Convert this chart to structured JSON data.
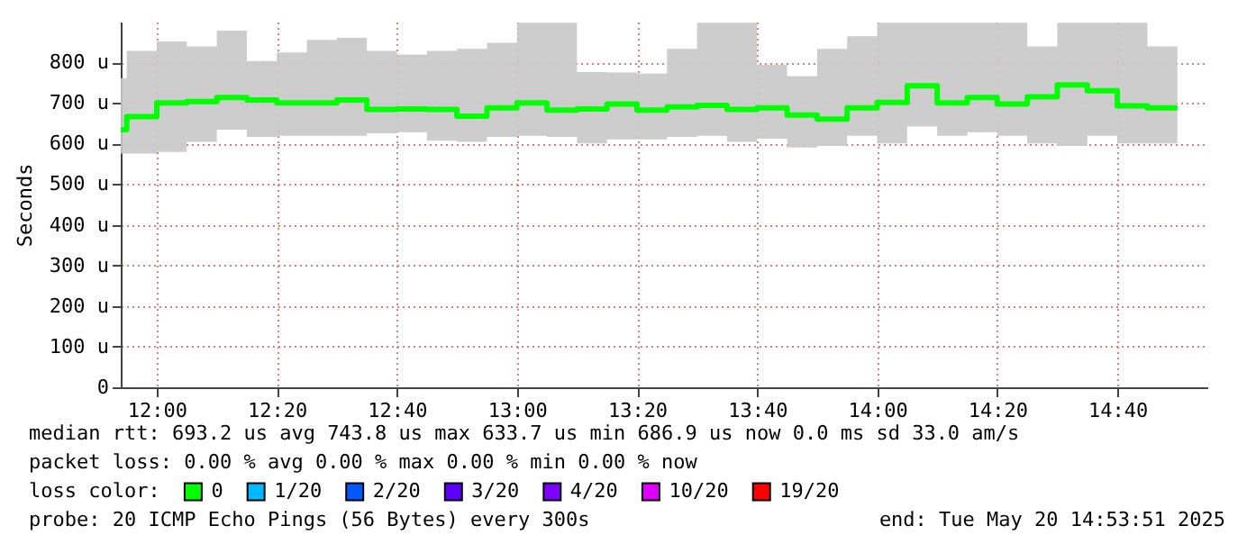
{
  "chart_data": {
    "type": "step",
    "ylabel": "Seconds",
    "legend_title": "loss color:",
    "legend": "bottom",
    "grid": true,
    "x": [
      "2025-05-20T11:54",
      "2025-05-20T11:55",
      "2025-05-20T12:00",
      "2025-05-20T12:05",
      "2025-05-20T12:10",
      "2025-05-20T12:15",
      "2025-05-20T12:20",
      "2025-05-20T12:25",
      "2025-05-20T12:30",
      "2025-05-20T12:35",
      "2025-05-20T12:40",
      "2025-05-20T12:45",
      "2025-05-20T12:50",
      "2025-05-20T12:55",
      "2025-05-20T13:00",
      "2025-05-20T13:05",
      "2025-05-20T13:10",
      "2025-05-20T13:15",
      "2025-05-20T13:20",
      "2025-05-20T13:25",
      "2025-05-20T13:30",
      "2025-05-20T13:35",
      "2025-05-20T13:40",
      "2025-05-20T13:45",
      "2025-05-20T13:50",
      "2025-05-20T13:55",
      "2025-05-20T14:00",
      "2025-05-20T14:05",
      "2025-05-20T14:10",
      "2025-05-20T14:15",
      "2025-05-20T14:20",
      "2025-05-20T14:25",
      "2025-05-20T14:30",
      "2025-05-20T14:35",
      "2025-05-20T14:40",
      "2025-05-20T14:45",
      "2025-05-20T14:50"
    ],
    "xlim": [
      "2025-05-20T11:54",
      "2025-05-20T14:55"
    ],
    "xticks": [
      {
        "value": "2025-05-20T12:00",
        "label": "12:00"
      },
      {
        "value": "2025-05-20T12:20",
        "label": "12:20"
      },
      {
        "value": "2025-05-20T12:40",
        "label": "12:40"
      },
      {
        "value": "2025-05-20T13:00",
        "label": "13:00"
      },
      {
        "value": "2025-05-20T13:20",
        "label": "13:20"
      },
      {
        "value": "2025-05-20T13:40",
        "label": "13:40"
      },
      {
        "value": "2025-05-20T14:00",
        "label": "14:00"
      },
      {
        "value": "2025-05-20T14:20",
        "label": "14:20"
      },
      {
        "value": "2025-05-20T14:40",
        "label": "14:40"
      }
    ],
    "ylim": [
      0,
      900
    ],
    "yticks": [
      0,
      {
        "value": 100,
        "label": "100 u"
      },
      {
        "value": 200,
        "label": "200 u"
      },
      {
        "value": 300,
        "label": "300 u"
      },
      {
        "value": 400,
        "label": "400 u"
      },
      {
        "value": 500,
        "label": "500 u"
      },
      {
        "value": 600,
        "label": "600 u"
      },
      {
        "value": 700,
        "label": "700 u"
      },
      {
        "value": 800,
        "label": "800 u"
      }
    ],
    "series": [
      {
        "name": "0",
        "color": "#00ff00",
        "values": [
          634,
          666,
          700,
          703,
          713,
          707,
          700,
          700,
          707,
          684,
          685,
          684,
          667,
          688,
          700,
          682,
          685,
          697,
          682,
          690,
          694,
          684,
          688,
          670,
          660,
          688,
          701,
          742,
          700,
          713,
          697,
          715,
          744,
          730,
          693,
          688,
          688
        ],
        "lower": [
          575,
          575,
          579,
          604,
          634,
          616,
          619,
          619,
          619,
          625,
          628,
          607,
          604,
          616,
          619,
          616,
          600,
          610,
          610,
          616,
          619,
          604,
          612,
          590,
          594,
          619,
          600,
          642,
          619,
          628,
          619,
          600,
          594,
          619,
          600,
          600,
          600
        ],
        "upper": [
          761,
          828,
          851,
          839,
          878,
          803,
          824,
          855,
          860,
          828,
          819,
          828,
          833,
          848,
          897,
          897,
          776,
          775,
          772,
          833,
          897,
          897,
          794,
          766,
          833,
          864,
          897,
          897,
          897,
          897,
          897,
          839,
          897,
          897,
          897,
          839,
          839
        ]
      },
      {
        "name": "1/20",
        "color": "#00b8ff",
        "values": [
          null,
          null,
          null,
          null,
          null,
          null,
          null,
          null,
          null,
          null,
          null,
          null,
          null,
          null,
          null,
          null,
          null,
          null,
          null,
          null,
          null,
          null,
          null,
          null,
          null,
          null,
          null,
          null,
          null,
          null,
          null,
          null,
          null,
          null,
          null,
          null,
          null
        ]
      },
      {
        "name": "2/20",
        "color": "#0059ff",
        "values": [
          null,
          null,
          null,
          null,
          null,
          null,
          null,
          null,
          null,
          null,
          null,
          null,
          null,
          null,
          null,
          null,
          null,
          null,
          null,
          null,
          null,
          null,
          null,
          null,
          null,
          null,
          null,
          null,
          null,
          null,
          null,
          null,
          null,
          null,
          null,
          null,
          null
        ]
      },
      {
        "name": "3/20",
        "color": "#5e00ff",
        "values": [
          null,
          null,
          null,
          null,
          null,
          null,
          null,
          null,
          null,
          null,
          null,
          null,
          null,
          null,
          null,
          null,
          null,
          null,
          null,
          null,
          null,
          null,
          null,
          null,
          null,
          null,
          null,
          null,
          null,
          null,
          null,
          null,
          null,
          null,
          null,
          null,
          null
        ]
      },
      {
        "name": "4/20",
        "color": "#7e00ff",
        "values": [
          null,
          null,
          null,
          null,
          null,
          null,
          null,
          null,
          null,
          null,
          null,
          null,
          null,
          null,
          null,
          null,
          null,
          null,
          null,
          null,
          null,
          null,
          null,
          null,
          null,
          null,
          null,
          null,
          null,
          null,
          null,
          null,
          null,
          null,
          null,
          null,
          null
        ]
      },
      {
        "name": "10/20",
        "color": "#dd00ff",
        "values": [
          null,
          null,
          null,
          null,
          null,
          null,
          null,
          null,
          null,
          null,
          null,
          null,
          null,
          null,
          null,
          null,
          null,
          null,
          null,
          null,
          null,
          null,
          null,
          null,
          null,
          null,
          null,
          null,
          null,
          null,
          null,
          null,
          null,
          null,
          null,
          null,
          null
        ]
      },
      {
        "name": "19/20",
        "color": "#ff0000",
        "values": [
          null,
          null,
          null,
          null,
          null,
          null,
          null,
          null,
          null,
          null,
          null,
          null,
          null,
          null,
          null,
          null,
          null,
          null,
          null,
          null,
          null,
          null,
          null,
          null,
          null,
          null,
          null,
          null,
          null,
          null,
          null,
          null,
          null,
          null,
          null,
          null,
          null
        ]
      }
    ],
    "annotations": [
      "median rtt:  693.2 us avg  743.8 us max  633.7 us min  686.9 us now  0.0 ms sd  33.0   am/s",
      "packet loss: 0.00 % avg  0.00 % max  0.00 % min  0.00 % now",
      "probe:       20 ICMP Echo Pings (56 Bytes) every 300s",
      "end: Tue May 20 14:53:51 2025"
    ]
  }
}
